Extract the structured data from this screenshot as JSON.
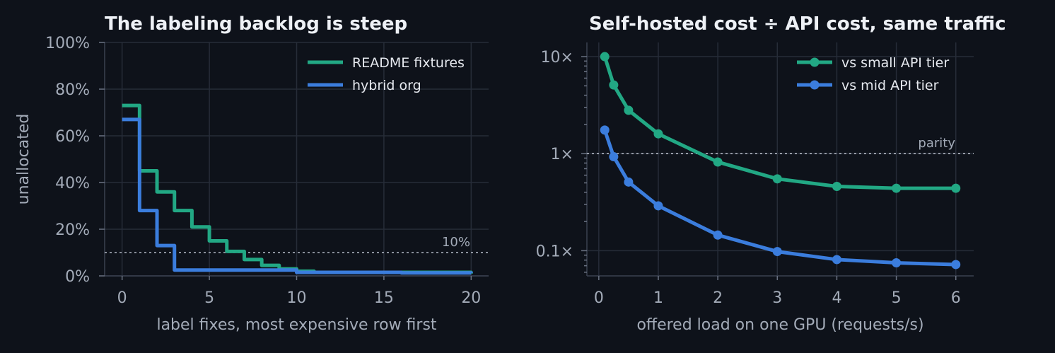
{
  "chart_data": [
    {
      "type": "line",
      "step": true,
      "title": "The labeling backlog is steep",
      "xlabel": "label fixes, most expensive row first",
      "ylabel": "unallocated",
      "xlim": [
        -1,
        21
      ],
      "ylim": [
        0,
        100
      ],
      "x_ticks": [
        0,
        5,
        10,
        15,
        20
      ],
      "y_ticks": [
        0,
        20,
        40,
        60,
        80,
        100
      ],
      "y_tick_labels": [
        "0%",
        "20%",
        "40%",
        "60%",
        "80%",
        "100%"
      ],
      "grid": true,
      "legend_position": "top-right",
      "reference_line": {
        "y": 10,
        "label": "10%",
        "style": "dotted"
      },
      "series": [
        {
          "name": "README fixtures",
          "color": "#22a884",
          "x": [
            0,
            1,
            2,
            3,
            4,
            5,
            6,
            7,
            8,
            9,
            10,
            11,
            20
          ],
          "y": [
            73,
            45,
            36,
            28,
            21,
            15,
            10.5,
            7,
            4.5,
            3,
            2,
            1.5,
            1
          ]
        },
        {
          "name": "hybrid org",
          "color": "#3b7ddd",
          "x": [
            0,
            1,
            2,
            3,
            10,
            16,
            20
          ],
          "y": [
            67,
            28,
            13,
            2.5,
            1.5,
            1.3,
            1.2
          ]
        }
      ]
    },
    {
      "type": "line",
      "title": "Self-hosted cost ÷ API cost, same traffic",
      "xlabel": "offered load on one GPU (requests/s)",
      "ylabel": "",
      "xlim": [
        -0.2,
        6.3
      ],
      "ylim": [
        0.055,
        14
      ],
      "y_scale": "log",
      "x_ticks": [
        0,
        1,
        2,
        3,
        4,
        5,
        6
      ],
      "y_ticks": [
        0.1,
        1,
        10
      ],
      "y_tick_labels": [
        "0.1×",
        "1×",
        "10×"
      ],
      "grid": true,
      "legend_position": "top-right",
      "reference_line": {
        "y": 1,
        "label": "parity",
        "style": "dotted"
      },
      "series": [
        {
          "name": "vs small API tier",
          "color": "#22a884",
          "markers": true,
          "x": [
            0.1,
            0.25,
            0.5,
            1,
            2,
            3,
            4,
            5,
            6
          ],
          "y": [
            10,
            5.1,
            2.8,
            1.6,
            0.82,
            0.55,
            0.46,
            0.44,
            0.44
          ]
        },
        {
          "name": "vs mid API tier",
          "color": "#3b7ddd",
          "markers": true,
          "x": [
            0.1,
            0.25,
            0.5,
            1,
            2,
            3,
            4,
            5,
            6
          ],
          "y": [
            1.75,
            0.93,
            0.51,
            0.29,
            0.145,
            0.098,
            0.081,
            0.075,
            0.072
          ]
        }
      ]
    }
  ]
}
